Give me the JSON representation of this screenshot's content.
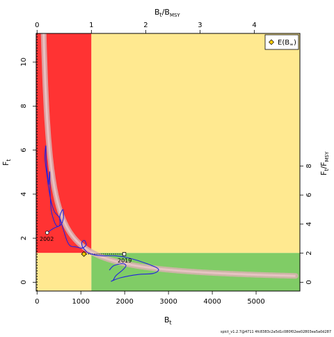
{
  "chart_data": {
    "type": "line",
    "axes": {
      "bottom": {
        "label": "B",
        "label_sub": "t",
        "ticks": [
          0,
          1000,
          2000,
          3000,
          4000,
          5000
        ],
        "range": [
          -20,
          6000
        ]
      },
      "left": {
        "label": "F",
        "label_sub": "t",
        "ticks": [
          0,
          2,
          4,
          6,
          8,
          10
        ],
        "range": [
          -0.4,
          11.3
        ]
      },
      "top": {
        "label": "B",
        "label_sub": "t",
        "label_mid": "/B",
        "label_sub2": "MSY",
        "ticks": [
          0,
          1,
          2,
          3,
          4
        ],
        "units_per_bottom": 1240
      },
      "right": {
        "label": "F",
        "label_sub": "t",
        "label_mid": "/F",
        "label_sub2": "MSY",
        "ticks": [
          0,
          2,
          4,
          6,
          8
        ],
        "units_per_left": 0.66
      }
    },
    "zones": [
      {
        "name": "red",
        "color": "#ff3333",
        "b": [
          -20,
          1240
        ],
        "f": [
          1.33,
          11.3
        ]
      },
      {
        "name": "yellow-top",
        "color": "#ffe990",
        "b": [
          1240,
          6000
        ],
        "f": [
          1.33,
          11.3
        ]
      },
      {
        "name": "yellow-bottom",
        "color": "#ffe990",
        "b": [
          -20,
          1240
        ],
        "f": [
          -0.4,
          1.33
        ]
      },
      {
        "name": "green",
        "color": "#80cc66",
        "b": [
          1240,
          6000
        ],
        "f": [
          -0.4,
          1.33
        ]
      }
    ],
    "equilibrium_curve": {
      "color": "#e7c3c3",
      "band_color": "#d8b0b0",
      "k": 1700
    },
    "trajectory": {
      "color": "#2222dd",
      "points": [
        [
          230,
          2.25
        ],
        [
          380,
          2.45
        ],
        [
          540,
          2.6
        ],
        [
          600,
          2.9
        ],
        [
          590,
          3.3
        ],
        [
          520,
          3.0
        ],
        [
          520,
          2.6
        ],
        [
          430,
          2.6
        ],
        [
          330,
          3.2
        ],
        [
          300,
          4.0
        ],
        [
          290,
          5.0
        ],
        [
          270,
          4.6
        ],
        [
          260,
          4.5
        ],
        [
          210,
          5.5
        ],
        [
          200,
          6.2
        ],
        [
          180,
          5.6
        ],
        [
          230,
          4.8
        ],
        [
          270,
          4.2
        ],
        [
          330,
          3.6
        ],
        [
          400,
          3.2
        ],
        [
          520,
          2.9
        ],
        [
          600,
          2.4
        ],
        [
          680,
          1.9
        ],
        [
          760,
          1.65
        ],
        [
          900,
          1.6
        ],
        [
          1030,
          1.55
        ],
        [
          1120,
          1.7
        ],
        [
          1080,
          1.9
        ],
        [
          1020,
          1.8
        ],
        [
          1040,
          1.6
        ],
        [
          1100,
          1.45
        ],
        [
          1150,
          1.35
        ],
        [
          1300,
          1.25
        ],
        [
          1500,
          1.2
        ],
        [
          1800,
          1.2
        ],
        [
          2100,
          1.1
        ],
        [
          2500,
          0.85
        ],
        [
          2770,
          0.6
        ],
        [
          2650,
          0.4
        ],
        [
          2300,
          0.35
        ],
        [
          1900,
          0.2
        ],
        [
          1700,
          0.05
        ],
        [
          1740,
          0.1
        ],
        [
          1800,
          0.3
        ],
        [
          1950,
          0.55
        ],
        [
          2030,
          0.75
        ],
        [
          1950,
          0.85
        ],
        [
          1750,
          0.75
        ],
        [
          1650,
          0.55
        ]
      ]
    },
    "start_point": {
      "year": "2002",
      "b": 230,
      "f": 2.25
    },
    "end_point": {
      "year": "2019",
      "b": 1990,
      "f": 1.28
    },
    "msy_point": {
      "b": 1070,
      "f": 1.28,
      "color": "#ffcc00"
    },
    "dotted_line_f": 1.28,
    "legend": {
      "label": "E(B",
      "label_sub": "∞",
      "label_end": ")",
      "position": "top-right",
      "marker_color": "#ffcc00"
    }
  },
  "footer": "spict_v1.2.7@4711 4fc8383c2a5d1c080f02ee02803ea5a0d287"
}
